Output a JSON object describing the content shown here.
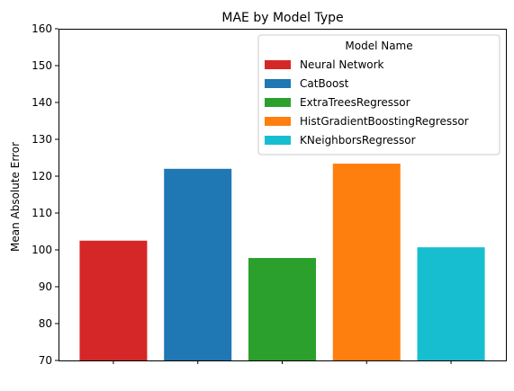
{
  "chart_data": {
    "type": "bar",
    "title": "MAE by Model Type",
    "xlabel": "",
    "ylabel": "Mean Absolute Error",
    "ylim": [
      70,
      160
    ],
    "yticks": [
      70,
      80,
      90,
      100,
      110,
      120,
      130,
      140,
      150,
      160
    ],
    "grid": false,
    "legend": {
      "title": "Model Name",
      "placement": "top-right"
    },
    "series": [
      {
        "name": "Neural Network",
        "value": 102.5,
        "color": "#d62728"
      },
      {
        "name": "CatBoost",
        "value": 122.0,
        "color": "#1f77b4"
      },
      {
        "name": "ExtraTreesRegressor",
        "value": 97.8,
        "color": "#2ca02c"
      },
      {
        "name": "HistGradientBoostingRegressor",
        "value": 123.4,
        "color": "#ff7f0e"
      },
      {
        "name": "KNeighborsRegressor",
        "value": 100.7,
        "color": "#17becf"
      }
    ]
  }
}
